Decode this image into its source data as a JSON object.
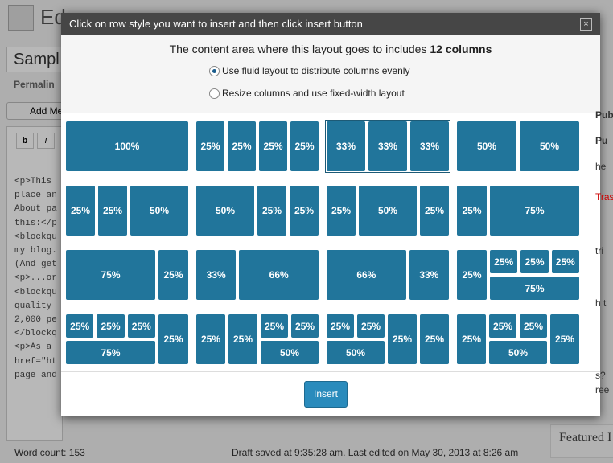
{
  "background": {
    "title": "Ed",
    "post_title": "Sampl",
    "permalink": "Permalin",
    "add_media": "Add Me",
    "toolbar": [
      "b",
      "i"
    ],
    "code_lines": [
      "<p>This",
      "place an",
      "About pa",
      "this:</p",
      "<blockqu",
      "my blog.",
      "(And get",
      "<p>...or",
      "<blockqu",
      "quality",
      "2,000 pe",
      "</blockq",
      "<p>As a",
      "href=\"ht",
      "page and"
    ],
    "word_count": "Word count: 153",
    "draft_status": "Draft saved at 9:35:28 am. Last edited on May 30, 2013 at 8:26 am",
    "sidebar": [
      "Publi",
      "Pu",
      "he",
      "Tras",
      "tri",
      "h t",
      "s?",
      "ree"
    ],
    "featured": "Featured I"
  },
  "modal": {
    "title": "Click on row style you want to insert and then click insert button",
    "close": "×",
    "heading": "The content area where this layout goes to includes ",
    "heading_bold": "12 columns",
    "options": [
      "Use fluid layout to distribute columns evenly",
      "Resize columns and use fixed-width layout"
    ],
    "checked": 0,
    "selected": 2,
    "layouts": [
      [
        "100%"
      ],
      [
        "25%",
        "25%",
        "25%",
        "25%"
      ],
      [
        "33%",
        "33%",
        "33%"
      ],
      [
        "50%",
        "50%"
      ],
      [
        "25%",
        "25%",
        "50%"
      ],
      [
        "50%",
        "25%",
        "25%"
      ],
      [
        "25%",
        "50%",
        "25%"
      ],
      [
        "25%",
        "75%"
      ],
      [
        "75%",
        "25%"
      ],
      [
        "33%",
        "66%"
      ],
      [
        "66%",
        "33%"
      ],
      [
        "25%",
        [
          [
            "25%",
            "25%",
            "25%"
          ],
          [
            "75%"
          ]
        ]
      ],
      [
        [
          [
            "25%",
            "25%",
            "25%"
          ],
          [
            "75%"
          ]
        ],
        "25%"
      ],
      [
        "25%",
        "25%",
        [
          [
            "25%",
            "25%"
          ],
          [
            "50%"
          ]
        ]
      ],
      [
        [
          [
            "25%",
            "25%"
          ],
          [
            "50%"
          ]
        ],
        "25%",
        "25%"
      ],
      [
        "25%",
        [
          [
            "25%",
            "25%"
          ],
          [
            "50%"
          ]
        ],
        "25%"
      ]
    ],
    "button": "Insert"
  }
}
